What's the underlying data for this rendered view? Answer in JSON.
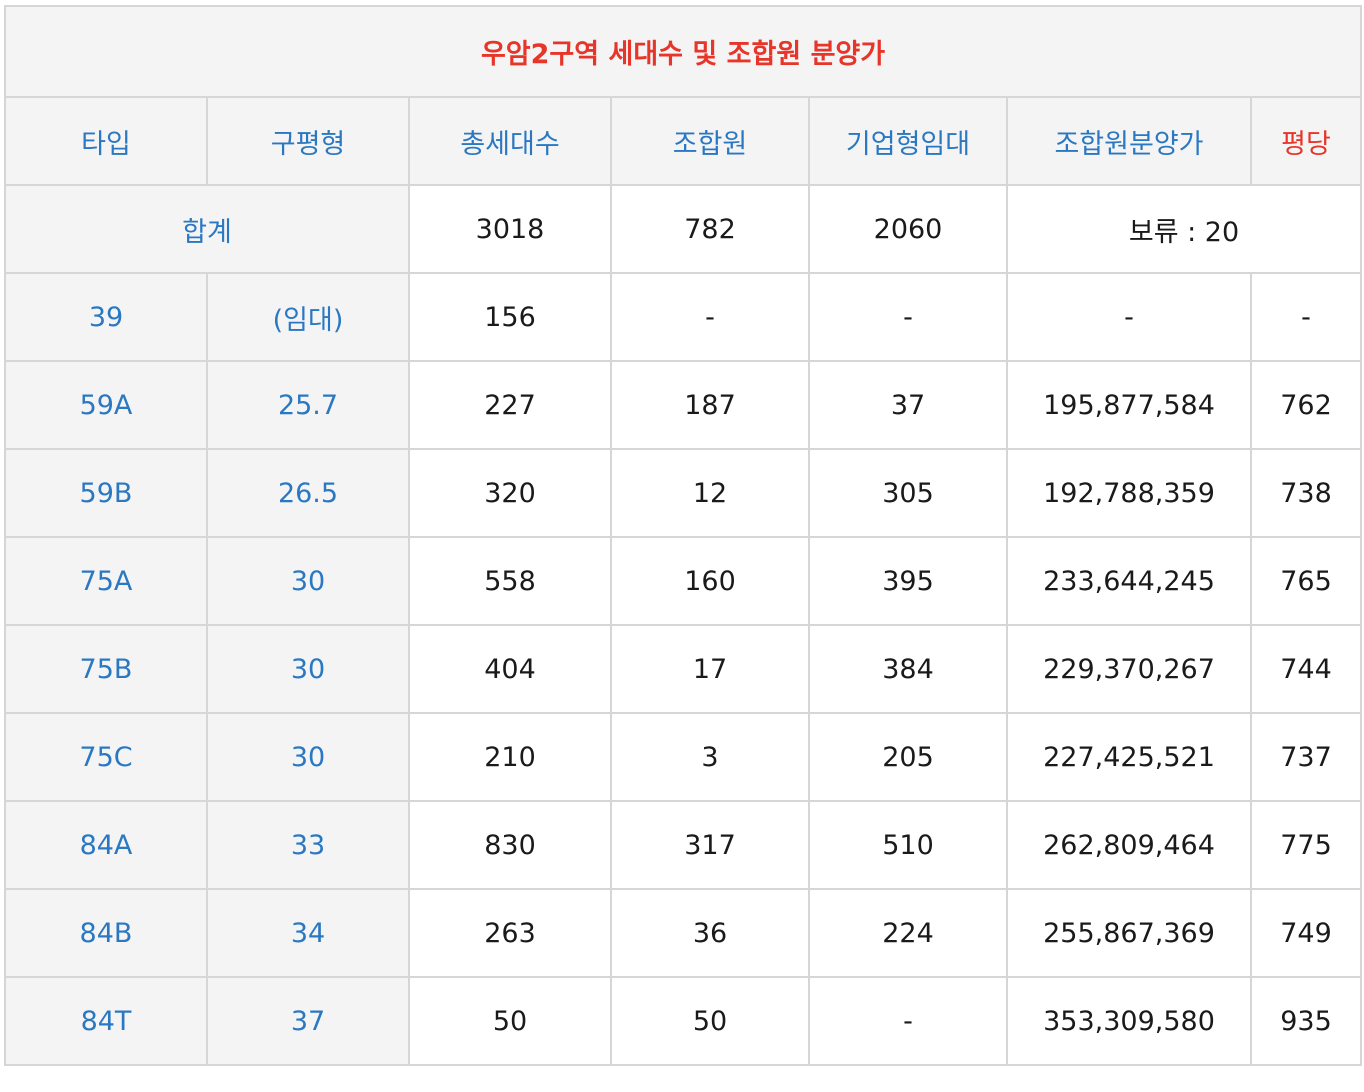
{
  "title": "우암2구역 세대수 및 조합원 분양가",
  "headers": [
    "타입",
    "구평형",
    "총세대수",
    "조합원",
    "기업형임대",
    "조합원분양가",
    "평당"
  ],
  "total": {
    "label": "합계",
    "total_units": "3018",
    "members": "782",
    "rental": "2060",
    "price_note": "보류 : 20"
  },
  "rows": [
    {
      "type": "39",
      "pyeong": "(임대)",
      "total_units": "156",
      "members": "-",
      "rental": "-",
      "price": "-",
      "per_pyeong": "-"
    },
    {
      "type": "59A",
      "pyeong": "25.7",
      "total_units": "227",
      "members": "187",
      "rental": "37",
      "price": "195,877,584",
      "per_pyeong": "762"
    },
    {
      "type": "59B",
      "pyeong": "26.5",
      "total_units": "320",
      "members": "12",
      "rental": "305",
      "price": "192,788,359",
      "per_pyeong": "738"
    },
    {
      "type": "75A",
      "pyeong": "30",
      "total_units": "558",
      "members": "160",
      "rental": "395",
      "price": "233,644,245",
      "per_pyeong": "765"
    },
    {
      "type": "75B",
      "pyeong": "30",
      "total_units": "404",
      "members": "17",
      "rental": "384",
      "price": "229,370,267",
      "per_pyeong": "744"
    },
    {
      "type": "75C",
      "pyeong": "30",
      "total_units": "210",
      "members": "3",
      "rental": "205",
      "price": "227,425,521",
      "per_pyeong": "737"
    },
    {
      "type": "84A",
      "pyeong": "33",
      "total_units": "830",
      "members": "317",
      "rental": "510",
      "price": "262,809,464",
      "per_pyeong": "775"
    },
    {
      "type": "84B",
      "pyeong": "34",
      "total_units": "263",
      "members": "36",
      "rental": "224",
      "price": "255,867,369",
      "per_pyeong": "749"
    },
    {
      "type": "84T",
      "pyeong": "37",
      "total_units": "50",
      "members": "50",
      "rental": "-",
      "price": "353,309,580",
      "per_pyeong": "935"
    }
  ],
  "colors": {
    "header_blue": "#2b78c2",
    "accent_red": "#e8352a",
    "shade": "#f4f4f4",
    "border": "#d6d6d6"
  }
}
